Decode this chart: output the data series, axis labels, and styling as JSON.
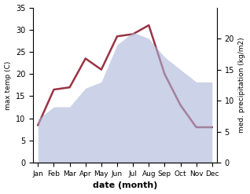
{
  "months": [
    "Jan",
    "Feb",
    "Mar",
    "Apr",
    "May",
    "Jun",
    "Jul",
    "Aug",
    "Sep",
    "Oct",
    "Nov",
    "Dec"
  ],
  "temperature": [
    8.5,
    16.5,
    17.0,
    23.5,
    21.0,
    28.5,
    29.0,
    31.0,
    20.0,
    13.0,
    8.0,
    8.0
  ],
  "precipitation": [
    7,
    9,
    9,
    12,
    13,
    19,
    21,
    20,
    17,
    15,
    13,
    13
  ],
  "temp_color": "#993344",
  "precip_color": "#aab4d8",
  "precip_fill_alpha": 0.6,
  "xlabel": "date (month)",
  "ylabel_left": "max temp (C)",
  "ylabel_right": "med. precipitation (kg/m2)",
  "ylim_left": [
    0,
    35
  ],
  "ylim_right": [
    0,
    25
  ],
  "yticks_left": [
    0,
    5,
    10,
    15,
    20,
    25,
    30,
    35
  ],
  "yticks_right": [
    0,
    5,
    10,
    15,
    20
  ],
  "bg_color": "#ffffff"
}
